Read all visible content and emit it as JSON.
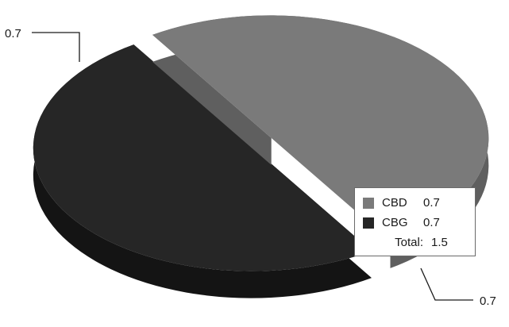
{
  "chart_data": {
    "type": "pie",
    "title": "",
    "slices": [
      {
        "name": "CBD",
        "value": 0.7,
        "label": "0.7",
        "color": "#7a7a7a",
        "side_color": "#5f5f5f"
      },
      {
        "name": "CBG",
        "value": 0.7,
        "label": "0.7",
        "color": "#262626",
        "side_color": "#141414"
      }
    ],
    "total_label": "Total:",
    "total_value": "1.5",
    "exploded": true,
    "three_d": true,
    "legend_position": "right"
  }
}
